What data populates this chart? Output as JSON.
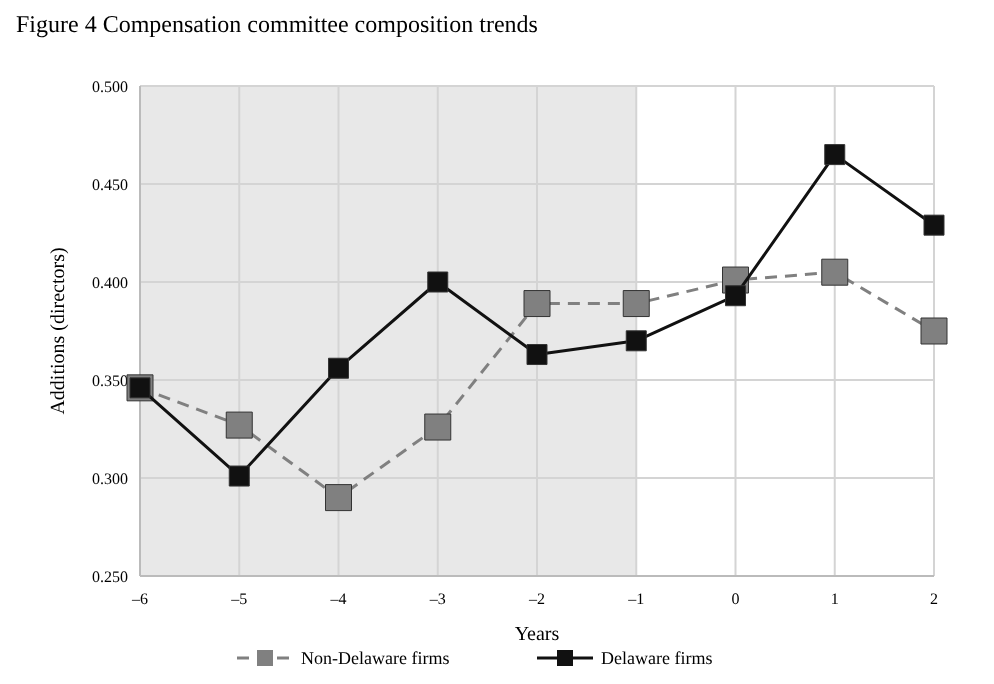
{
  "chart_data": {
    "type": "line",
    "title": "Figure 4  Compensation committee composition trends",
    "xlabel": "Years",
    "ylabel": "Additions (directors)",
    "x": [
      -6,
      -5,
      -4,
      -3,
      -2,
      -1,
      0,
      1,
      2
    ],
    "xlim": [
      -6,
      2
    ],
    "xticks": [
      {
        "value": -6,
        "label": "–6"
      },
      {
        "value": -5,
        "label": "–5"
      },
      {
        "value": -4,
        "label": "–4"
      },
      {
        "value": -3,
        "label": "–3"
      },
      {
        "value": -2,
        "label": "–2"
      },
      {
        "value": -1,
        "label": "–1"
      },
      0,
      1,
      2
    ],
    "ylim": [
      0.25,
      0.5
    ],
    "yticks": [
      {
        "value": 0.25,
        "label": "0.250"
      },
      {
        "value": 0.3,
        "label": "0.300"
      },
      {
        "value": 0.35,
        "label": "0.350"
      },
      {
        "value": 0.4,
        "label": "0.400"
      },
      {
        "value": 0.45,
        "label": "0.450"
      },
      {
        "value": 0.5,
        "label": "0.500"
      }
    ],
    "grid": true,
    "legend": "bottom",
    "marker": "square",
    "bands": [
      {
        "axis": "x",
        "from": -6,
        "to": -1,
        "color": "#e8e8e8"
      }
    ],
    "series": [
      {
        "name": "Non-Delaware firms",
        "color": "#808080",
        "line_style": "dashed",
        "values": [
          0.346,
          0.327,
          0.29,
          0.326,
          0.389,
          0.389,
          0.401,
          0.405,
          0.375
        ]
      },
      {
        "name": "Delaware firms",
        "color": "#111111",
        "line_style": "solid",
        "values": [
          0.346,
          0.301,
          0.356,
          0.4,
          0.363,
          0.37,
          0.393,
          0.465,
          0.429
        ]
      }
    ]
  }
}
